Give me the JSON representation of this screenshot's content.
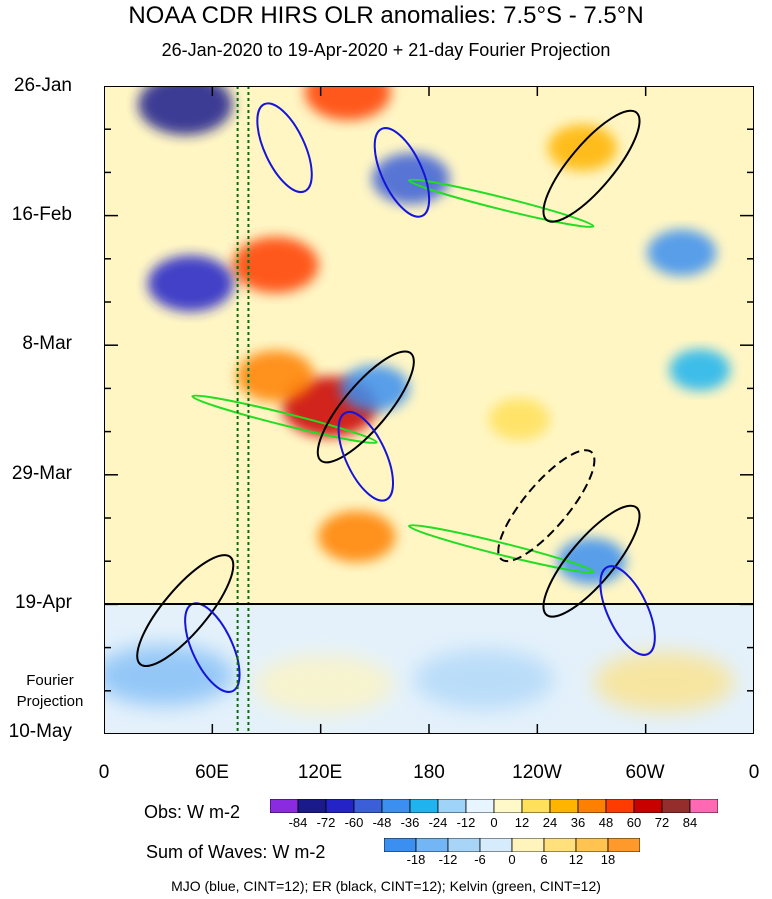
{
  "title": "NOAA CDR HIRS OLR anomalies: 7.5°S - 7.5°N",
  "subtitle": "26-Jan-2020 to 19-Apr-2020 + 21-day Fourier Projection",
  "projection_label": [
    "Fourier",
    "Projection"
  ],
  "footer": "MJO (blue, CINT=12); ER (black, CINT=12); Kelvin (green, CINT=12)",
  "colorbar_obs": {
    "title": "Obs: W m-2",
    "labels": [
      "-84",
      "-72",
      "-60",
      "-48",
      "-36",
      "-24",
      "-12",
      "0",
      "12",
      "24",
      "36",
      "48",
      "60",
      "72",
      "84"
    ],
    "colors": [
      "#8a2be2",
      "#1a1a8c",
      "#2323c8",
      "#3a5fd8",
      "#3a8ff0",
      "#1fb4f0",
      "#9fd3f7",
      "#e6f5ff",
      "#fff8c8",
      "#ffe05a",
      "#ffb400",
      "#ff8000",
      "#ff3c00",
      "#c80000",
      "#962d2d",
      "#ff69b4"
    ]
  },
  "colorbar_waves": {
    "title": "Sum of Waves: W m-2",
    "labels": [
      "-18",
      "-12",
      "-6",
      "0",
      "6",
      "12",
      "18"
    ],
    "colors": [
      "#3a8ff0",
      "#72b6f5",
      "#a8d4f8",
      "#d6ebfb",
      "#fff4bc",
      "#ffe07a",
      "#ffc350",
      "#ff9a2a"
    ]
  },
  "chart_data": {
    "type": "heatmap",
    "title": "NOAA CDR HIRS OLR anomalies: 7.5°S - 7.5°N",
    "subtitle": "26-Jan-2020 to 19-Apr-2020 + 21-day Fourier Projection",
    "x_axis": {
      "ticks": [
        "0",
        "60E",
        "120E",
        "180",
        "120W",
        "60W",
        "0"
      ],
      "range_deg_east": [
        0,
        360
      ]
    },
    "y_axis": {
      "ticks": [
        "26-Jan",
        "16-Feb",
        "8-Mar",
        "29-Mar",
        "19-Apr",
        "10-May"
      ],
      "direction": "time increases downward"
    },
    "observation_end": "19-Apr",
    "projection_end": "10-May",
    "reference_lines_deg_east": [
      74,
      80
    ],
    "anomaly_features": [
      {
        "lon": 45,
        "date": "2020-01-29",
        "value": -72
      },
      {
        "lon": 135,
        "date": "2020-01-27",
        "value": 60
      },
      {
        "lon": 170,
        "date": "2020-02-10",
        "value": -48
      },
      {
        "lon": 95,
        "date": "2020-02-24",
        "value": 60
      },
      {
        "lon": 48,
        "date": "2020-02-27",
        "value": -60
      },
      {
        "lon": 125,
        "date": "2020-03-18",
        "value": 72
      },
      {
        "lon": 95,
        "date": "2020-03-13",
        "value": 48
      },
      {
        "lon": 140,
        "date": "2020-04-08",
        "value": 48
      },
      {
        "lon": 150,
        "date": "2020-03-15",
        "value": -36
      },
      {
        "lon": 270,
        "date": "2020-04-12",
        "value": -36
      },
      {
        "lon": 265,
        "date": "2020-02-05",
        "value": 36
      },
      {
        "lon": 230,
        "date": "2020-03-20",
        "value": 24
      },
      {
        "lon": 330,
        "date": "2020-03-12",
        "value": -24
      },
      {
        "lon": 320,
        "date": "2020-02-22",
        "value": -36
      }
    ],
    "wave_contours": [
      {
        "wave": "MJO",
        "color": "blue",
        "lon": 100,
        "date": "2020-02-05",
        "sign": "negative"
      },
      {
        "wave": "MJO",
        "color": "blue",
        "lon": 165,
        "date": "2020-02-09",
        "sign": "negative"
      },
      {
        "wave": "MJO",
        "color": "blue",
        "lon": 145,
        "date": "2020-03-26",
        "sign": "negative"
      },
      {
        "wave": "MJO",
        "color": "blue",
        "lon": 60,
        "date": "2020-04-26",
        "sign": "negative"
      },
      {
        "wave": "MJO",
        "color": "blue",
        "lon": 290,
        "date": "2020-04-20",
        "sign": "negative"
      },
      {
        "wave": "ER",
        "color": "black",
        "lon": 145,
        "date": "2020-03-18",
        "sign": "negative"
      },
      {
        "wave": "ER",
        "color": "black",
        "lon": 270,
        "date": "2020-02-08",
        "sign": "negative"
      },
      {
        "wave": "ER",
        "color": "black",
        "lon": 270,
        "date": "2020-04-12",
        "sign": "negative"
      },
      {
        "wave": "ER",
        "color": "black",
        "lon": 45,
        "date": "2020-04-20",
        "sign": "negative"
      },
      {
        "wave": "ER",
        "color": "black",
        "lon": 245,
        "date": "2020-04-03",
        "sign": "positive"
      },
      {
        "wave": "Kelvin",
        "color": "green",
        "lon": 100,
        "date": "2020-03-20",
        "sign": "negative"
      },
      {
        "wave": "Kelvin",
        "color": "green",
        "lon": 220,
        "date": "2020-04-10",
        "sign": "negative"
      },
      {
        "wave": "Kelvin",
        "color": "green",
        "lon": 220,
        "date": "2020-02-14",
        "sign": "negative"
      }
    ],
    "legend": [
      "MJO (blue, CINT=12)",
      "ER (black, CINT=12)",
      "Kelvin (green, CINT=12)"
    ]
  }
}
